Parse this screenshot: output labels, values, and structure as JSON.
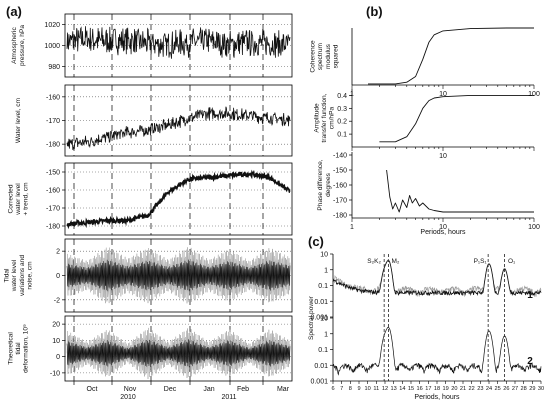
{
  "chart_data": [
    {
      "panel_label": "(a)",
      "type": "line",
      "months": [
        "Oct",
        "Nov",
        "Dec",
        "Jan",
        "Feb",
        "Mar"
      ],
      "years": [
        "2010",
        "2011"
      ],
      "subplots": [
        {
          "ylabel": [
            "Atmospheric",
            "pressure, hPa"
          ],
          "yticks": [
            980,
            1000,
            1020
          ],
          "ylim": [
            970,
            1030
          ],
          "mean": [
            1004,
            1006,
            1004,
            1005,
            1002,
            1000,
            1003,
            1004,
            1001,
            1003,
            1002,
            1000
          ],
          "noise": 12
        },
        {
          "ylabel": [
            "Water level, cm"
          ],
          "yticks": [
            -180,
            -170,
            -160
          ],
          "ylim": [
            -185,
            -155
          ],
          "mean": [
            -180,
            -179,
            -177,
            -175,
            -174,
            -172,
            -169,
            -167,
            -167,
            -168,
            -169,
            -170
          ],
          "noise": 2.5
        },
        {
          "ylabel": [
            "Corrected",
            "water level",
            "+ trend, cm"
          ],
          "yticks": [
            -180,
            -170,
            -160,
            -150
          ],
          "ylim": [
            -185,
            -145
          ],
          "mean": [
            -179,
            -178,
            -177,
            -177,
            -174,
            -161,
            -154,
            -153,
            -152,
            -151,
            -153,
            -161
          ],
          "noise": 1.2
        },
        {
          "ylabel": [
            "Tidal",
            "water level",
            "variations and",
            "noise, cm"
          ],
          "yticks": [
            -2,
            0,
            2
          ],
          "ylim": [
            -3,
            3
          ],
          "amp": [
            1.8,
            1.2,
            2.4,
            1.4,
            2.3,
            1.3,
            2.4,
            1.3,
            2.2,
            1.2,
            2.3,
            1.5
          ]
        },
        {
          "ylabel": [
            "Theoretical",
            "tidal",
            "deformation, 10⁹"
          ],
          "yticks": [
            -10,
            0,
            10,
            20
          ],
          "ylim": [
            -15,
            25
          ],
          "amp": [
            14,
            7,
            15,
            6,
            16,
            7,
            16,
            7,
            15,
            6,
            15,
            8
          ]
        }
      ]
    },
    {
      "panel_label": "(b)",
      "type": "line",
      "xscale": "log",
      "xticks": [
        1,
        10,
        100
      ],
      "xlabel": "Periods, hours",
      "subplots": [
        {
          "ylabel": [
            "Coherence",
            "spectrum",
            "modulus",
            "squared"
          ],
          "yticks": [],
          "ylim": [
            0,
            1
          ],
          "x": [
            1.5,
            3,
            4,
            5,
            6,
            7,
            8,
            10,
            20,
            50,
            100
          ],
          "y": [
            0.02,
            0.02,
            0.05,
            0.15,
            0.45,
            0.75,
            0.88,
            0.95,
            0.99,
            1.0,
            1.0
          ]
        },
        {
          "ylabel": [
            "Amplitude",
            "transfer function,",
            "cm/hPa"
          ],
          "yticks": [
            0.1,
            0.2,
            0.3,
            0.4
          ],
          "ylim": [
            0,
            0.45
          ],
          "x": [
            2,
            3,
            4,
            5,
            6,
            7,
            8,
            10,
            20,
            50,
            100
          ],
          "y": [
            0.04,
            0.04,
            0.08,
            0.18,
            0.3,
            0.36,
            0.38,
            0.39,
            0.4,
            0.4,
            0.4
          ]
        },
        {
          "ylabel": [
            "Phase difference,",
            "degrees"
          ],
          "yticks": [
            -180,
            -170,
            -160,
            -150,
            -140
          ],
          "ylim": [
            -182,
            -138
          ],
          "x": [
            2.4,
            2.6,
            2.8,
            3,
            3.3,
            3.6,
            4,
            4.3,
            4.6,
            5,
            5.5,
            6,
            7,
            8,
            10,
            20,
            50,
            100
          ],
          "y": [
            -150,
            -168,
            -176,
            -172,
            -178,
            -170,
            -175,
            -167,
            -172,
            -169,
            -174,
            -172,
            -176,
            -177,
            -178,
            -178,
            -178,
            -178
          ]
        }
      ]
    },
    {
      "panel_label": "(c)",
      "type": "line",
      "yscale": "log",
      "xlabel": "Periods, hours",
      "ylabel": "Spectral power",
      "xlim": [
        6,
        30
      ],
      "xticks": [
        6,
        7,
        8,
        9,
        10,
        11,
        12,
        13,
        14,
        15,
        16,
        17,
        18,
        19,
        20,
        21,
        22,
        23,
        24,
        25,
        26,
        27,
        28,
        29,
        30
      ],
      "yticks": [
        "0.001",
        "0.01",
        "0.1",
        "1",
        "10"
      ],
      "vlines": [
        11.9,
        12.4,
        23.9,
        25.8
      ],
      "tide_labels": [
        {
          "text": "S₂K₂",
          "x": 11.9
        },
        {
          "text": "M₂",
          "x": 12.4
        },
        {
          "text": "P₁S₁",
          "x": 23.9
        },
        {
          "text": "O₁",
          "x": 25.8
        }
      ],
      "series_labels": [
        "1",
        "2"
      ],
      "peaks": [
        {
          "center": 12.0,
          "height": 1.2
        },
        {
          "center": 12.4,
          "height": 4.0
        },
        {
          "center": 24.0,
          "height": 2.5
        },
        {
          "center": 25.8,
          "height": 1.2
        }
      ]
    }
  ]
}
